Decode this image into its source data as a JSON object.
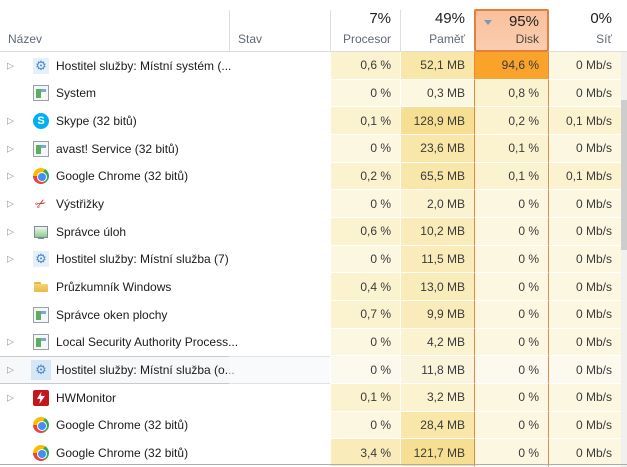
{
  "header": {
    "columns": [
      {
        "id": "name",
        "label": "Název",
        "value": ""
      },
      {
        "id": "status",
        "label": "Stav",
        "value": ""
      },
      {
        "id": "cpu",
        "label": "Procesor",
        "value": "7%"
      },
      {
        "id": "memory",
        "label": "Paměť",
        "value": "49%"
      },
      {
        "id": "disk",
        "label": "Disk",
        "value": "95%"
      },
      {
        "id": "network",
        "label": "Síť",
        "value": "0%"
      }
    ],
    "sort": {
      "column": "disk",
      "direction": "desc"
    }
  },
  "colors": {
    "heat_levels": [
      "#fcf7e0",
      "#fbf2d0",
      "#f9ecba",
      "#f8e7a8",
      "#f6df92",
      "#f9a32a"
    ],
    "disk_column_border": "#e8873e",
    "disk_header_background": "#f9c09c",
    "disk_header_border": "#e2813d",
    "sort_arrow": "#7b98b5",
    "hover_row_border": "#c9c9c9"
  },
  "processes": [
    {
      "name": "Hostitel služby: Místní systém (...",
      "icon": "gear",
      "expandable": true,
      "hovered": false,
      "status": "",
      "cpu": "0,6 %",
      "memory": "52,1 MB",
      "disk": "94,6 %",
      "network": "0 Mb/s",
      "levels": [
        1,
        3,
        5,
        0
      ]
    },
    {
      "name": "System",
      "icon": "window",
      "expandable": false,
      "hovered": false,
      "status": "",
      "cpu": "0 %",
      "memory": "0,3 MB",
      "disk": "0,8 %",
      "network": "0 Mb/s",
      "levels": [
        0,
        0,
        1,
        0
      ]
    },
    {
      "name": "Skype (32 bitů)",
      "icon": "skype",
      "expandable": true,
      "hovered": false,
      "status": "",
      "cpu": "0,1 %",
      "memory": "128,9 MB",
      "disk": "0,2 %",
      "network": "0,1 Mb/s",
      "levels": [
        1,
        4,
        1,
        1
      ]
    },
    {
      "name": "avast! Service (32 bitů)",
      "icon": "window",
      "expandable": true,
      "hovered": false,
      "status": "",
      "cpu": "0 %",
      "memory": "23,6 MB",
      "disk": "0,1 %",
      "network": "0 Mb/s",
      "levels": [
        0,
        3,
        1,
        0
      ]
    },
    {
      "name": "Google Chrome (32 bitů)",
      "icon": "chrome",
      "expandable": true,
      "hovered": false,
      "status": "",
      "cpu": "0,2 %",
      "memory": "65,5 MB",
      "disk": "0,1 %",
      "network": "0,1 Mb/s",
      "levels": [
        1,
        3,
        1,
        1
      ]
    },
    {
      "name": "Výstřižky",
      "icon": "snip",
      "expandable": true,
      "hovered": false,
      "status": "",
      "cpu": "0 %",
      "memory": "2,0 MB",
      "disk": "0 %",
      "network": "0 Mb/s",
      "levels": [
        0,
        1,
        0,
        0
      ]
    },
    {
      "name": "Správce úloh",
      "icon": "taskmgr",
      "expandable": true,
      "hovered": false,
      "status": "",
      "cpu": "0,6 %",
      "memory": "10,2 MB",
      "disk": "0 %",
      "network": "0 Mb/s",
      "levels": [
        1,
        2,
        0,
        0
      ]
    },
    {
      "name": "Hostitel služby: Místní služba (7)",
      "icon": "gear",
      "expandable": true,
      "hovered": false,
      "status": "",
      "cpu": "0 %",
      "memory": "11,5 MB",
      "disk": "0 %",
      "network": "0 Mb/s",
      "levels": [
        0,
        2,
        0,
        0
      ]
    },
    {
      "name": "Průzkumník Windows",
      "icon": "folder",
      "expandable": false,
      "hovered": false,
      "status": "",
      "cpu": "0,4 %",
      "memory": "13,0 MB",
      "disk": "0 %",
      "network": "0 Mb/s",
      "levels": [
        1,
        2,
        0,
        0
      ]
    },
    {
      "name": "Správce oken plochy",
      "icon": "window",
      "expandable": false,
      "hovered": false,
      "status": "",
      "cpu": "0,7 %",
      "memory": "9,9 MB",
      "disk": "0 %",
      "network": "0 Mb/s",
      "levels": [
        1,
        2,
        0,
        0
      ]
    },
    {
      "name": "Local Security Authority Process...",
      "icon": "window",
      "expandable": true,
      "hovered": false,
      "status": "",
      "cpu": "0 %",
      "memory": "4,2 MB",
      "disk": "0 %",
      "network": "0 Mb/s",
      "levels": [
        0,
        1,
        0,
        0
      ]
    },
    {
      "name": "Hostitel služby: Místní služba (o...",
      "icon": "gear",
      "expandable": true,
      "hovered": true,
      "status": "",
      "cpu": "0 %",
      "memory": "11,8 MB",
      "disk": "0 %",
      "network": "0 Mb/s",
      "levels": [
        0,
        2,
        0,
        0
      ]
    },
    {
      "name": "HWMonitor",
      "icon": "hwmonitor",
      "expandable": true,
      "hovered": false,
      "status": "",
      "cpu": "0,1 %",
      "memory": "3,2 MB",
      "disk": "0 %",
      "network": "0 Mb/s",
      "levels": [
        1,
        1,
        0,
        0
      ]
    },
    {
      "name": "Google Chrome (32 bitů)",
      "icon": "chrome",
      "expandable": false,
      "hovered": false,
      "status": "",
      "cpu": "0 %",
      "memory": "28,4 MB",
      "disk": "0 %",
      "network": "0 Mb/s",
      "levels": [
        0,
        3,
        0,
        0
      ]
    },
    {
      "name": "Google Chrome (32 bitů)",
      "icon": "chrome",
      "expandable": false,
      "hovered": false,
      "status": "",
      "cpu": "3,4 %",
      "memory": "121,7 MB",
      "disk": "0 %",
      "network": "0 Mb/s",
      "levels": [
        2,
        4,
        0,
        0
      ]
    }
  ]
}
